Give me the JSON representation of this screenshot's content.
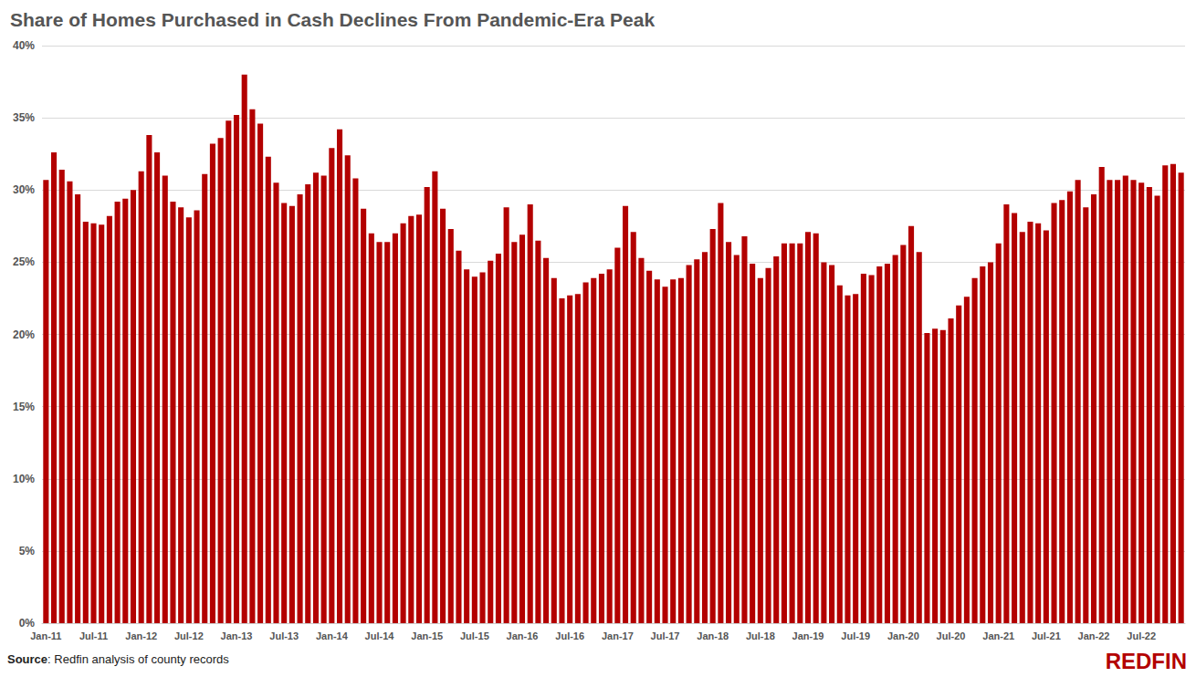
{
  "chart_data": {
    "type": "bar",
    "title": "Share of Homes Purchased in Cash Declines From Pandemic-Era Peak",
    "source": {
      "label": "Source",
      "text": ": Redfin analysis of county records"
    },
    "logo": "REDFIN",
    "color": "#b30000",
    "grid": true,
    "categories": [
      "Jan-11",
      null,
      null,
      null,
      null,
      null,
      "Jul-11",
      null,
      null,
      null,
      null,
      null,
      "Jan-12",
      null,
      null,
      null,
      null,
      null,
      "Jul-12",
      null,
      null,
      null,
      null,
      null,
      "Jan-13",
      null,
      null,
      null,
      null,
      null,
      "Jul-13",
      null,
      null,
      null,
      null,
      null,
      "Jan-14",
      null,
      null,
      null,
      null,
      null,
      "Jul-14",
      null,
      null,
      null,
      null,
      null,
      "Jan-15",
      null,
      null,
      null,
      null,
      null,
      "Jul-15",
      null,
      null,
      null,
      null,
      null,
      "Jan-16",
      null,
      null,
      null,
      null,
      null,
      "Jul-16",
      null,
      null,
      null,
      null,
      null,
      "Jan-17",
      null,
      null,
      null,
      null,
      null,
      "Jul-17",
      null,
      null,
      null,
      null,
      null,
      "Jan-18",
      null,
      null,
      null,
      null,
      null,
      "Jul-18",
      null,
      null,
      null,
      null,
      null,
      "Jan-19",
      null,
      null,
      null,
      null,
      null,
      "Jul-19",
      null,
      null,
      null,
      null,
      null,
      "Jan-20",
      null,
      null,
      null,
      null,
      null,
      "Jul-20",
      null,
      null,
      null,
      null,
      null,
      "Jan-21",
      null,
      null,
      null,
      null,
      null,
      "Jul-21",
      null,
      null,
      null,
      null,
      null,
      "Jan-22",
      null,
      null,
      null,
      null,
      null,
      "Jul-22",
      null,
      null,
      null,
      null,
      null
    ],
    "values": [
      30.7,
      32.6,
      31.4,
      30.6,
      29.7,
      27.8,
      27.7,
      27.6,
      28.2,
      29.2,
      29.4,
      30.0,
      31.3,
      33.8,
      32.6,
      31.0,
      29.2,
      28.8,
      28.1,
      28.6,
      31.1,
      33.2,
      33.6,
      34.8,
      35.2,
      38.0,
      35.6,
      34.6,
      32.3,
      30.5,
      29.1,
      28.9,
      29.7,
      30.4,
      31.2,
      31.0,
      32.9,
      34.2,
      32.4,
      30.8,
      28.7,
      27.0,
      26.4,
      26.4,
      27.0,
      27.7,
      28.2,
      28.3,
      30.2,
      31.3,
      28.7,
      27.3,
      25.8,
      24.5,
      24.0,
      24.3,
      25.1,
      25.6,
      28.8,
      26.4,
      26.9,
      29.0,
      26.5,
      25.3,
      23.9,
      22.5,
      22.7,
      22.8,
      23.6,
      23.9,
      24.2,
      24.5,
      26.0,
      28.9,
      27.1,
      25.3,
      24.4,
      23.8,
      23.3,
      23.8,
      23.9,
      24.8,
      25.2,
      25.7,
      27.3,
      29.1,
      26.4,
      25.5,
      26.8,
      24.9,
      23.9,
      24.6,
      25.4,
      26.3,
      26.3,
      26.3,
      27.1,
      27.0,
      25.0,
      24.8,
      23.4,
      22.7,
      22.8,
      24.2,
      24.1,
      24.7,
      24.9,
      25.5,
      26.2,
      27.5,
      25.7,
      20.1,
      20.4,
      20.3,
      21.1,
      22.0,
      22.6,
      23.9,
      24.7,
      25.0,
      26.3,
      29.0,
      28.4,
      27.1,
      27.8,
      27.7,
      27.2,
      29.1,
      29.3,
      29.9,
      30.7,
      28.8,
      29.7,
      31.6,
      30.7,
      30.7,
      31.0,
      30.7,
      30.5,
      30.2,
      29.6,
      31.7,
      31.8,
      31.2
    ],
    "ylim": [
      0,
      40
    ],
    "yticks": [
      {
        "value": 0,
        "label": "0%"
      },
      {
        "value": 5,
        "label": "5%"
      },
      {
        "value": 10,
        "label": "10%"
      },
      {
        "value": 15,
        "label": "15%"
      },
      {
        "value": 20,
        "label": "20%"
      },
      {
        "value": 25,
        "label": "25%"
      },
      {
        "value": 30,
        "label": "30%"
      },
      {
        "value": 35,
        "label": "35%"
      },
      {
        "value": 40,
        "label": "40%"
      }
    ]
  }
}
